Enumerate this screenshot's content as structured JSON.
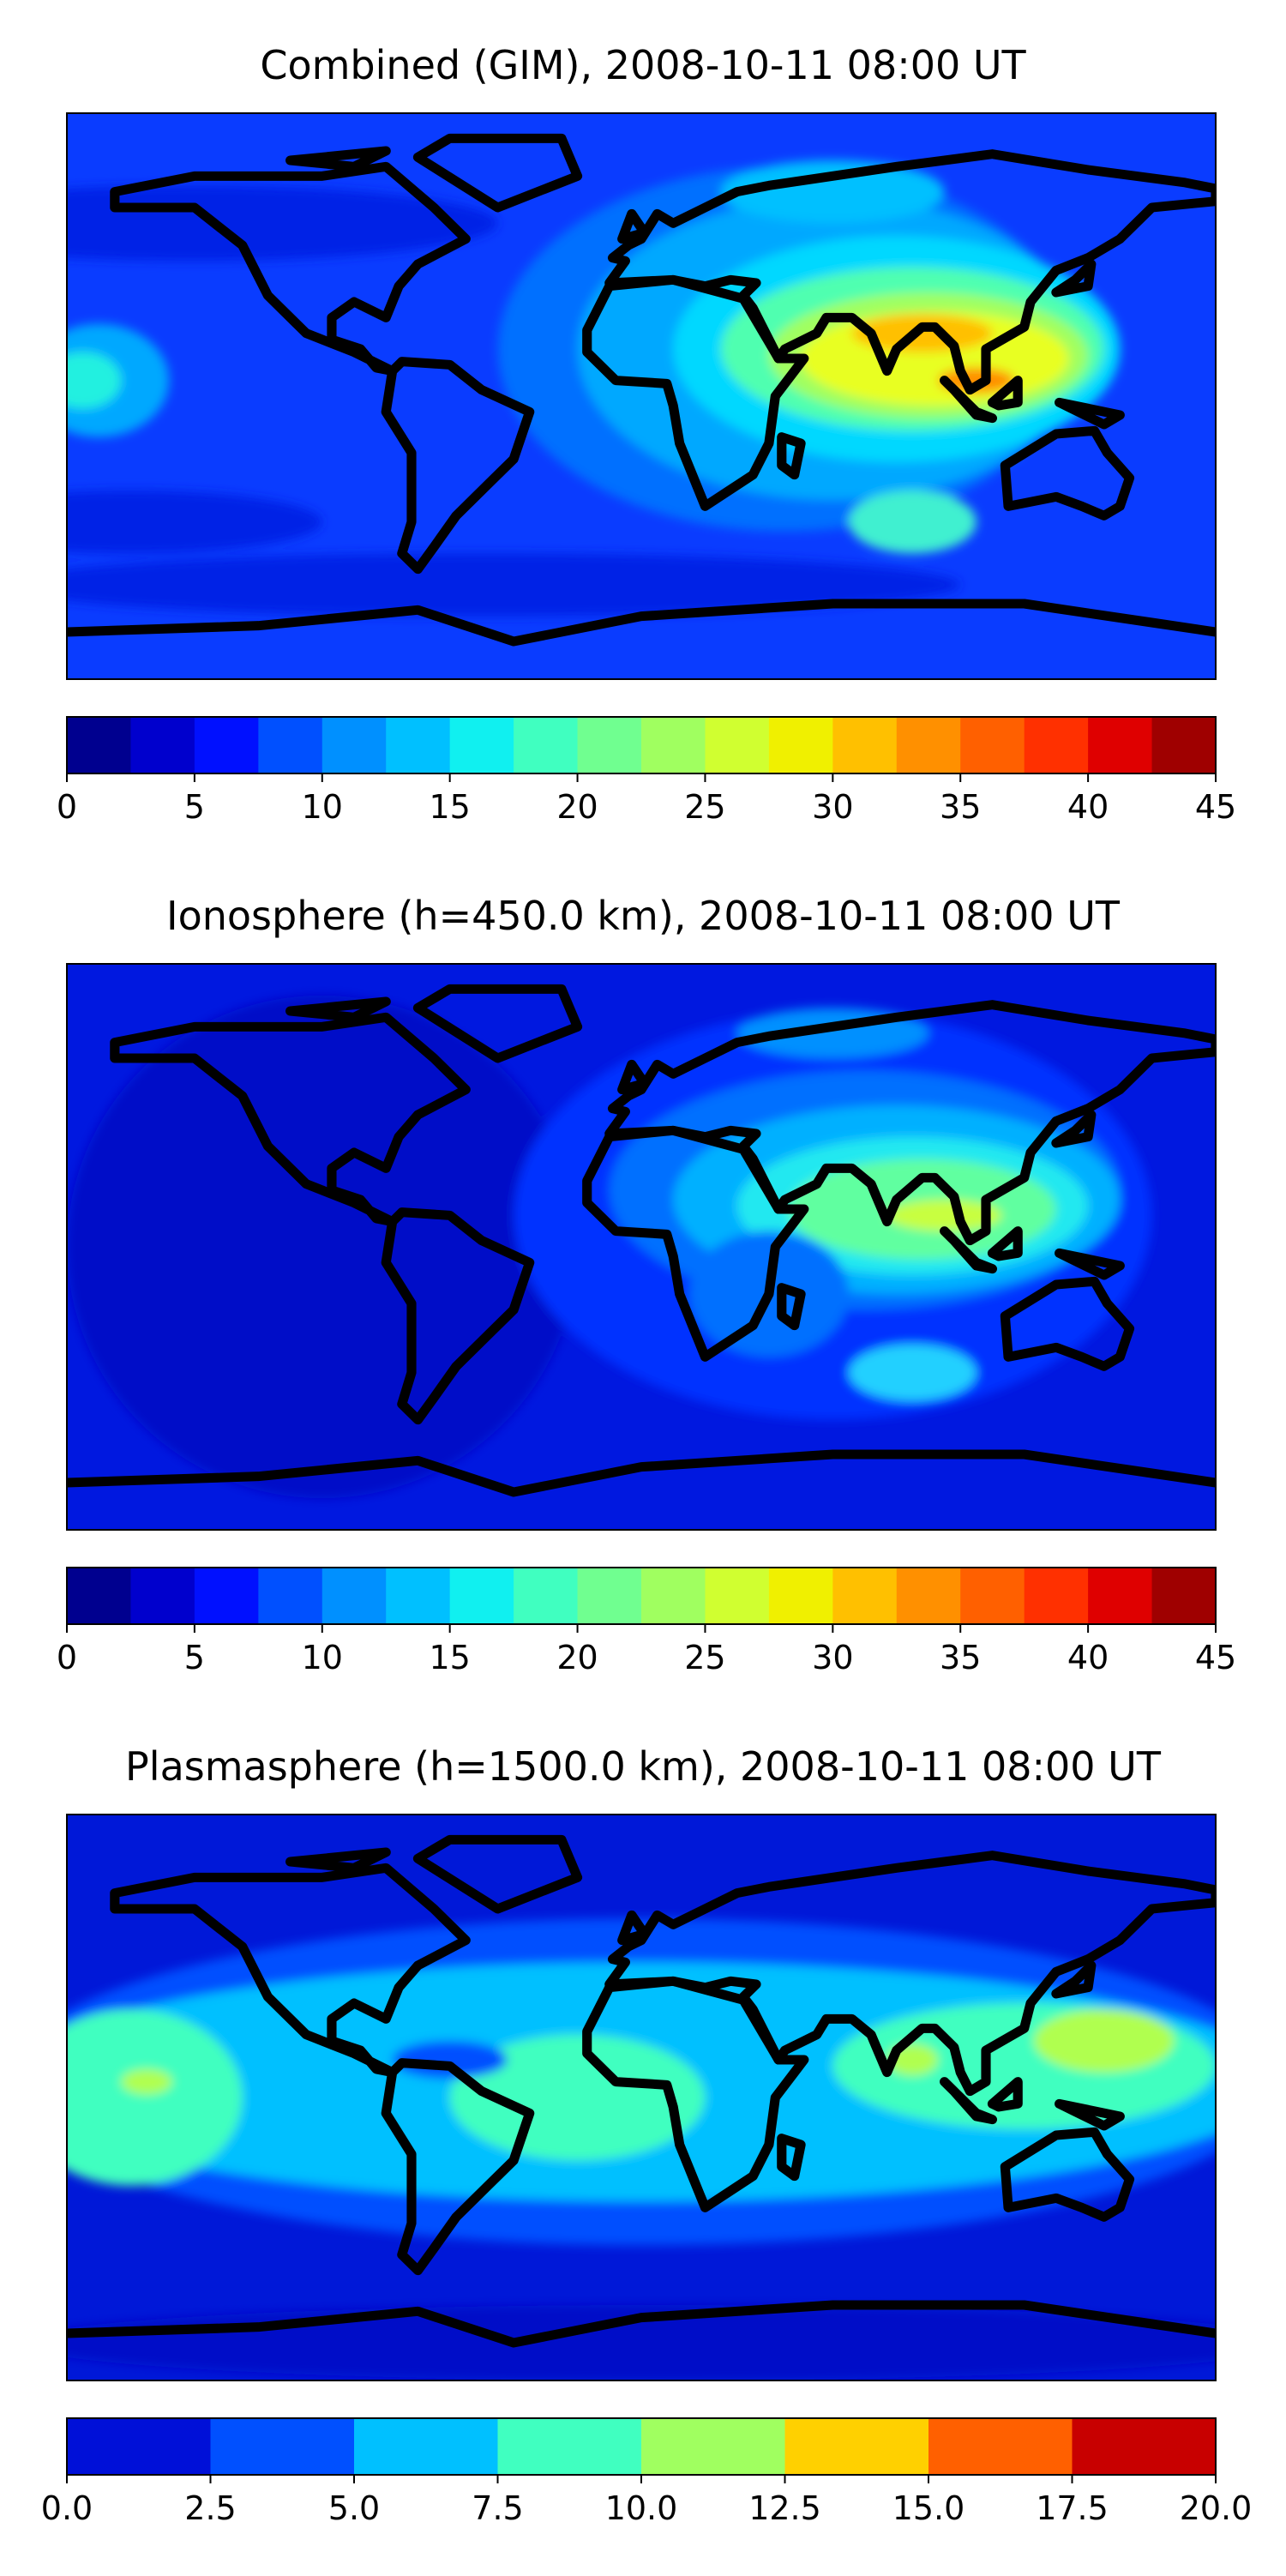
{
  "panels": [
    {
      "title": "Combined (GIM), 2008-10-11 08:00 UT",
      "colorbar": {
        "ticks": [
          "0",
          "5",
          "10",
          "15",
          "20",
          "25",
          "30",
          "35",
          "40",
          "45"
        ],
        "colors": [
          "#00008f",
          "#0000cd",
          "#0010ff",
          "#0050ff",
          "#0090ff",
          "#00c0ff",
          "#10f0f0",
          "#40ffc0",
          "#70ff90",
          "#a0ff60",
          "#d0ff30",
          "#f0f000",
          "#ffc000",
          "#ff9000",
          "#ff6000",
          "#ff3000",
          "#df0000",
          "#9f0000"
        ]
      },
      "field": {
        "background": "#0a3cff",
        "blobs": [
          {
            "lon": -140,
            "lat": 55,
            "rx": 95,
            "ry": 12,
            "color": "#0020e6"
          },
          {
            "lon": -160,
            "lat": -40,
            "rx": 60,
            "ry": 10,
            "color": "#0020e6"
          },
          {
            "lon": -50,
            "lat": -60,
            "rx": 150,
            "ry": 10,
            "color": "#0020e6"
          },
          {
            "lon": 45,
            "lat": 15,
            "rx": 90,
            "ry": 58,
            "color": "#0070ff"
          },
          {
            "lon": 60,
            "lat": 15,
            "rx": 80,
            "ry": 48,
            "color": "#00a8ff"
          },
          {
            "lon": 80,
            "lat": 15,
            "rx": 70,
            "ry": 36,
            "color": "#00d8ff"
          },
          {
            "lon": -170,
            "lat": 5,
            "rx": 22,
            "ry": 18,
            "color": "#00a8ff"
          },
          {
            "lon": -175,
            "lat": 5,
            "rx": 12,
            "ry": 9,
            "color": "#20f0e0"
          },
          {
            "lon": 85,
            "lat": 15,
            "rx": 60,
            "ry": 26,
            "color": "#50ffb0"
          },
          {
            "lon": 90,
            "lat": 13,
            "rx": 50,
            "ry": 20,
            "color": "#a0ff60"
          },
          {
            "lon": 92,
            "lat": 12,
            "rx": 42,
            "ry": 15,
            "color": "#e8ff20"
          },
          {
            "lon": 88,
            "lat": 20,
            "rx": 22,
            "ry": 6,
            "color": "#ffc000"
          },
          {
            "lon": 105,
            "lat": 5,
            "rx": 12,
            "ry": 4,
            "color": "#ff9000"
          },
          {
            "lon": 60,
            "lat": 65,
            "rx": 35,
            "ry": 10,
            "color": "#00c0ff"
          },
          {
            "lon": 85,
            "lat": -40,
            "rx": 20,
            "ry": 10,
            "color": "#40f0d0"
          }
        ]
      }
    },
    {
      "title": "Ionosphere  (h=450.0 km), 2008-10-11 08:00 UT",
      "colorbar": {
        "ticks": [
          "0",
          "5",
          "10",
          "15",
          "20",
          "25",
          "30",
          "35",
          "40",
          "45"
        ],
        "colors": [
          "#00008f",
          "#0000cd",
          "#0010ff",
          "#0050ff",
          "#0090ff",
          "#00c0ff",
          "#10f0f0",
          "#40ffc0",
          "#70ff90",
          "#a0ff60",
          "#d0ff30",
          "#f0f000",
          "#ffc000",
          "#ff9000",
          "#ff6000",
          "#ff3000",
          "#df0000",
          "#9f0000"
        ]
      },
      "field": {
        "background": "#0018e0",
        "blobs": [
          {
            "lon": -100,
            "lat": 0,
            "rx": 80,
            "ry": 80,
            "color": "#0008c8"
          },
          {
            "lon": 60,
            "lat": 10,
            "rx": 100,
            "ry": 65,
            "color": "#0030ff"
          },
          {
            "lon": 70,
            "lat": 18,
            "rx": 80,
            "ry": 38,
            "color": "#0070ff"
          },
          {
            "lon": 80,
            "lat": 15,
            "rx": 70,
            "ry": 30,
            "color": "#00b0ff"
          },
          {
            "lon": 85,
            "lat": 13,
            "rx": 55,
            "ry": 22,
            "color": "#20e8f0"
          },
          {
            "lon": 88,
            "lat": 12,
            "rx": 42,
            "ry": 16,
            "color": "#60ffa0"
          },
          {
            "lon": 95,
            "lat": 10,
            "rx": 18,
            "ry": 5,
            "color": "#c8ff40"
          },
          {
            "lon": 60,
            "lat": 68,
            "rx": 30,
            "ry": 8,
            "color": "#0090ff"
          },
          {
            "lon": 85,
            "lat": -40,
            "rx": 20,
            "ry": 9,
            "color": "#20d0ff"
          },
          {
            "lon": 40,
            "lat": -15,
            "rx": 25,
            "ry": 20,
            "color": "#0070ff"
          }
        ]
      }
    },
    {
      "title": "Plasmasphere (h=1500.0 km), 2008-10-11 08:00 UT",
      "colorbar": {
        "ticks": [
          "0.0",
          "2.5",
          "5.0",
          "7.5",
          "10.0",
          "12.5",
          "15.0",
          "17.5",
          "20.0"
        ],
        "colors": [
          "#0010d8",
          "#0050ff",
          "#00c0ff",
          "#40ffc0",
          "#a0ff60",
          "#ffd000",
          "#ff6000",
          "#c80000"
        ]
      },
      "field": {
        "background": "#0018d8",
        "blobs": [
          {
            "lon": 0,
            "lat": 5,
            "rx": 200,
            "ry": 52,
            "color": "#0050ff"
          },
          {
            "lon": 0,
            "lat": 5,
            "rx": 200,
            "ry": 38,
            "color": "#00c0ff"
          },
          {
            "lon": -160,
            "lat": 0,
            "rx": 35,
            "ry": 28,
            "color": "#40ffc0"
          },
          {
            "lon": -155,
            "lat": 5,
            "rx": 8,
            "ry": 4,
            "color": "#b0ff50"
          },
          {
            "lon": -20,
            "lat": 0,
            "rx": 40,
            "ry": 20,
            "color": "#40ffc0"
          },
          {
            "lon": 120,
            "lat": 10,
            "rx": 60,
            "ry": 20,
            "color": "#40ffc0"
          },
          {
            "lon": 85,
            "lat": 12,
            "rx": 8,
            "ry": 5,
            "color": "#b0ff50"
          },
          {
            "lon": 145,
            "lat": 18,
            "rx": 22,
            "ry": 10,
            "color": "#b0ff50"
          },
          {
            "lon": -60,
            "lat": 12,
            "rx": 18,
            "ry": 6,
            "color": "#0050ff"
          },
          {
            "lon": 5,
            "lat": -78,
            "rx": 200,
            "ry": 12,
            "color": "#0010c8"
          }
        ]
      }
    }
  ]
}
